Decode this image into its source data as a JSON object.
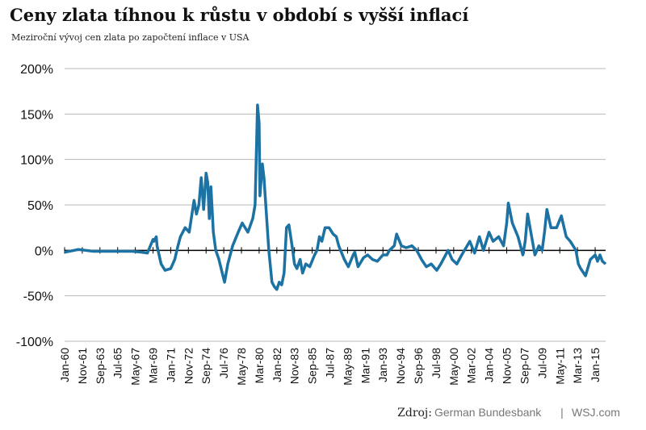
{
  "chart_data": {
    "type": "line",
    "title": "Ceny zlata tíhnou k růstu v období s vyšší inflací",
    "subtitle": "Meziroční vývoj cen zlata po započtení inflace v USA",
    "source_label": "Zdroj:",
    "source": [
      "German Bundesbank",
      "WSJ.com"
    ],
    "source_separator": "|",
    "xlim": [
      "1960-01",
      "2016-02"
    ],
    "ylim": [
      -100,
      200
    ],
    "yticks": [
      {
        "value": -100,
        "label": "-100%"
      },
      {
        "value": -50,
        "label": "-50%"
      },
      {
        "value": 0,
        "label": "0%"
      },
      {
        "value": 50,
        "label": "50%"
      },
      {
        "value": 100,
        "label": "100%"
      },
      {
        "value": 150,
        "label": "150%"
      },
      {
        "value": 200,
        "label": "200%"
      }
    ],
    "xticks": [
      {
        "value": "1960-01",
        "label": "Jan-60"
      },
      {
        "value": "1961-11",
        "label": "Nov-61"
      },
      {
        "value": "1963-09",
        "label": "Sep-63"
      },
      {
        "value": "1965-07",
        "label": "Jul-65"
      },
      {
        "value": "1967-05",
        "label": "May-67"
      },
      {
        "value": "1969-03",
        "label": "Mar-69"
      },
      {
        "value": "1971-01",
        "label": "Jan-71"
      },
      {
        "value": "1972-11",
        "label": "Nov-72"
      },
      {
        "value": "1974-09",
        "label": "Sep-74"
      },
      {
        "value": "1976-07",
        "label": "Jul-76"
      },
      {
        "value": "1978-05",
        "label": "May-78"
      },
      {
        "value": "1980-03",
        "label": "Mar-80"
      },
      {
        "value": "1982-01",
        "label": "Jan-82"
      },
      {
        "value": "1983-11",
        "label": "Nov-83"
      },
      {
        "value": "1985-09",
        "label": "Sep-85"
      },
      {
        "value": "1987-07",
        "label": "Jul-87"
      },
      {
        "value": "1989-05",
        "label": "May-89"
      },
      {
        "value": "1991-03",
        "label": "Mar-91"
      },
      {
        "value": "1993-01",
        "label": "Jan-93"
      },
      {
        "value": "1994-11",
        "label": "Nov-94"
      },
      {
        "value": "1996-09",
        "label": "Sep-96"
      },
      {
        "value": "1998-07",
        "label": "Jul-98"
      },
      {
        "value": "2000-05",
        "label": "May-00"
      },
      {
        "value": "2002-03",
        "label": "Mar-02"
      },
      {
        "value": "2004-01",
        "label": "Jan-04"
      },
      {
        "value": "2005-11",
        "label": "Nov-05"
      },
      {
        "value": "2007-09",
        "label": "Sep-07"
      },
      {
        "value": "2009-07",
        "label": "Jul-09"
      },
      {
        "value": "2011-05",
        "label": "May-11"
      },
      {
        "value": "2013-03",
        "label": "Mar-13"
      },
      {
        "value": "2015-01",
        "label": "Jan-15"
      }
    ],
    "grid": true,
    "x": [
      "1960-01",
      "1961-01",
      "1961-06",
      "1963-01",
      "1965-01",
      "1967-01",
      "1968-01",
      "1968-08",
      "1969-03",
      "1969-04",
      "1969-07",
      "1969-08",
      "1970-01",
      "1970-06",
      "1971-01",
      "1971-06",
      "1971-10",
      "1972-01",
      "1972-07",
      "1972-12",
      "1973-06",
      "1973-09",
      "1973-12",
      "1974-03",
      "1974-06",
      "1974-09",
      "1974-11",
      "1975-01",
      "1975-03",
      "1975-06",
      "1975-09",
      "1976-01",
      "1976-06",
      "1976-08",
      "1976-12",
      "1977-06",
      "1978-01",
      "1978-06",
      "1979-01",
      "1979-07",
      "1979-10",
      "1980-01",
      "1980-03",
      "1980-04",
      "1980-07",
      "1980-09",
      "1980-12",
      "1981-03",
      "1981-07",
      "1981-10",
      "1982-01",
      "1982-04",
      "1982-07",
      "1982-10",
      "1983-01",
      "1983-04",
      "1983-08",
      "1983-11",
      "1984-02",
      "1984-06",
      "1984-09",
      "1985-01",
      "1985-06",
      "1985-12",
      "1986-03",
      "1986-06",
      "1986-09",
      "1987-01",
      "1987-06",
      "1987-11",
      "1988-03",
      "1988-06",
      "1989-01",
      "1989-06",
      "1989-12",
      "1990-02",
      "1990-06",
      "1991-01",
      "1991-06",
      "1991-12",
      "1992-06",
      "1993-01",
      "1993-06",
      "1993-09",
      "1994-03",
      "1994-06",
      "1994-12",
      "1995-06",
      "1996-01",
      "1996-07",
      "1997-01",
      "1997-07",
      "1998-01",
      "1998-08",
      "1999-01",
      "1999-10",
      "2000-03",
      "2000-09",
      "2001-03",
      "2002-01",
      "2002-07",
      "2003-01",
      "2003-06",
      "2004-01",
      "2004-06",
      "2005-01",
      "2005-07",
      "2005-11",
      "2006-01",
      "2006-06",
      "2007-01",
      "2007-07",
      "2007-10",
      "2008-01",
      "2008-06",
      "2008-10",
      "2009-03",
      "2009-07",
      "2009-10",
      "2010-01",
      "2010-06",
      "2011-01",
      "2011-07",
      "2011-09",
      "2012-01",
      "2012-06",
      "2013-01",
      "2013-04",
      "2013-07",
      "2014-01",
      "2014-07",
      "2015-01",
      "2015-04",
      "2015-07",
      "2015-10",
      "2016-02"
    ],
    "series": [
      {
        "color": "#1b72a3",
        "values": [
          -2,
          0,
          1,
          -1,
          -1,
          -1,
          -2,
          -3,
          12,
          10,
          15,
          5,
          -15,
          -22,
          -20,
          -10,
          5,
          15,
          25,
          20,
          55,
          40,
          50,
          80,
          45,
          85,
          75,
          35,
          70,
          20,
          0,
          -10,
          -28,
          -35,
          -15,
          5,
          20,
          30,
          20,
          35,
          50,
          160,
          140,
          60,
          95,
          80,
          40,
          0,
          -35,
          -40,
          -43,
          -35,
          -38,
          -25,
          25,
          28,
          5,
          -15,
          -20,
          -10,
          -25,
          -15,
          -18,
          -5,
          0,
          15,
          10,
          25,
          25,
          18,
          15,
          5,
          -10,
          -18,
          -5,
          -2,
          -18,
          -8,
          -5,
          -10,
          -12,
          -5,
          -5,
          0,
          5,
          18,
          5,
          3,
          5,
          0,
          -10,
          -18,
          -15,
          -22,
          -15,
          0,
          -10,
          -15,
          -5,
          10,
          -3,
          15,
          0,
          20,
          10,
          15,
          5,
          30,
          52,
          30,
          15,
          -5,
          10,
          40,
          15,
          -5,
          5,
          0,
          20,
          45,
          25,
          25,
          38,
          30,
          15,
          10,
          0,
          -15,
          -20,
          -28,
          -10,
          -5,
          -12,
          -5,
          -12,
          -15
        ]
      }
    ]
  }
}
